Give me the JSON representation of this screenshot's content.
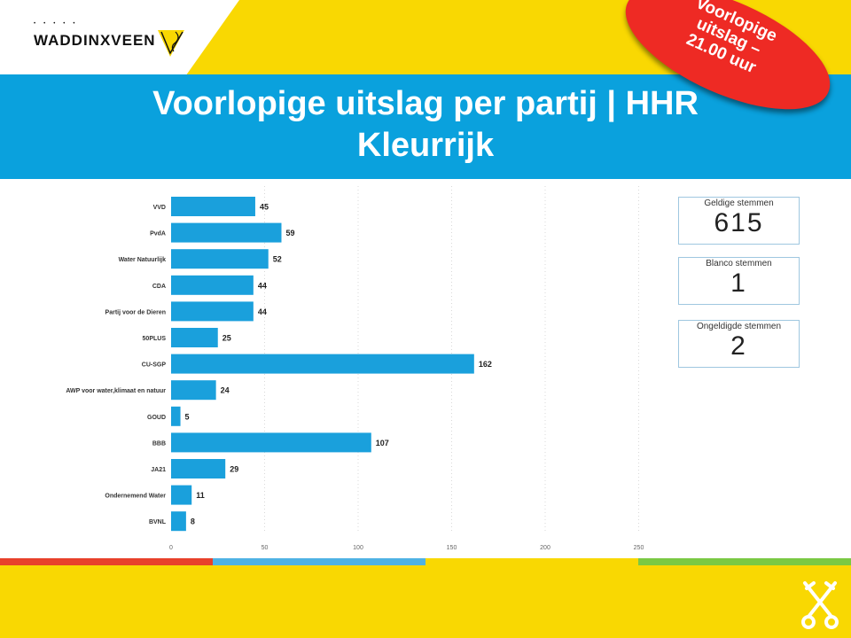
{
  "header": {
    "logo_text": "WADDINXVEEN",
    "logo_icon": "municipality-crest-icon",
    "title_line1": "Voorlopige uitslag per partij | HHR",
    "title_line2": "Kleurrijk",
    "stamp_line1": "Voorlopige",
    "stamp_line2": "uitslag –",
    "stamp_line3": "21.00 uur"
  },
  "cards": [
    {
      "label": "Geldige stemmen",
      "value": "615"
    },
    {
      "label": "Blanco stemmen",
      "value": "1"
    },
    {
      "label": "Ongeldigde stemmen",
      "value": "2"
    }
  ],
  "colors": {
    "brand_yellow": "#f9d802",
    "title_blue": "#0aa1dd",
    "bar_blue": "#1aa0dc",
    "stamp_red": "#ee2a24",
    "strip": [
      "#e8412b",
      "#4fb2e4",
      "#f9d802",
      "#7ac943"
    ]
  },
  "footer": {
    "icon": "crossed-keys-icon"
  },
  "chart_data": {
    "type": "bar",
    "orientation": "horizontal",
    "categories": [
      "VVD",
      "PvdA",
      "Water Natuurlijk",
      "CDA",
      "Partij voor de Dieren",
      "50PLUS",
      "CU-SGP",
      "AWP voor water,klimaat en natuur",
      "GOUD",
      "BBB",
      "JA21",
      "Ondernemend Water",
      "BVNL"
    ],
    "values": [
      45,
      59,
      52,
      44,
      44,
      25,
      162,
      24,
      5,
      107,
      29,
      11,
      8
    ],
    "xlim": [
      0,
      300
    ],
    "xticks": [
      0,
      50,
      100,
      150,
      200,
      250,
      300
    ],
    "grid": "vertical-dotted",
    "data_labels": true
  }
}
